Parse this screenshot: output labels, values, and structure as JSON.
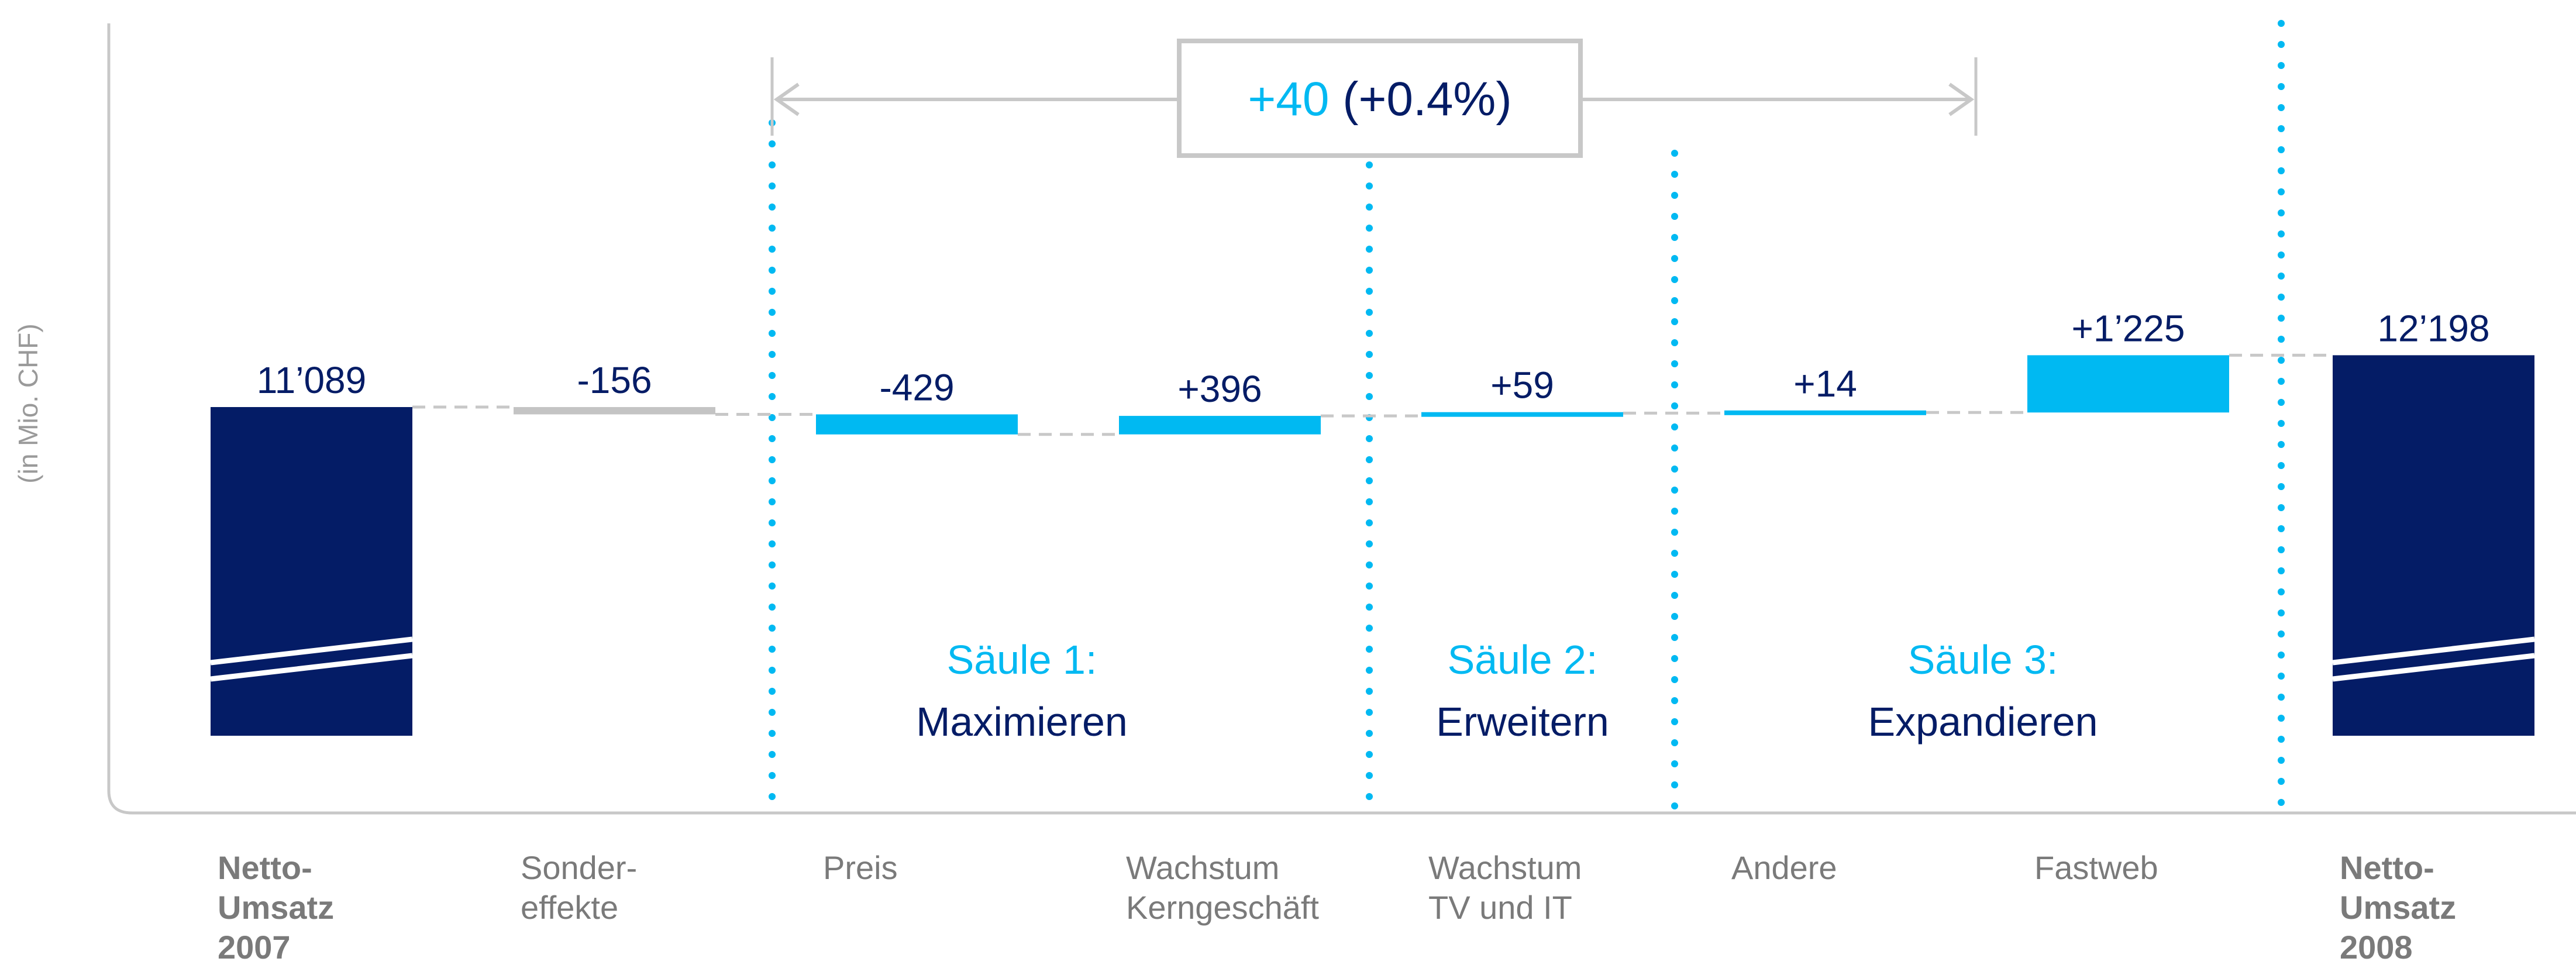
{
  "chart_data": {
    "type": "waterfall",
    "ylabel": "(in Mio. CHF)",
    "categories": [
      {
        "lines": [
          "Netto-",
          "Umsatz",
          "2007"
        ],
        "bold": true
      },
      {
        "lines": [
          "Sonder-",
          "effekte"
        ],
        "bold": false
      },
      {
        "lines": [
          "Preis"
        ],
        "bold": false
      },
      {
        "lines": [
          "Wachstum",
          "Kerngeschäft"
        ],
        "bold": false
      },
      {
        "lines": [
          "Wachstum",
          "TV und IT"
        ],
        "bold": false
      },
      {
        "lines": [
          "Andere"
        ],
        "bold": false
      },
      {
        "lines": [
          "Fastweb"
        ],
        "bold": false
      },
      {
        "lines": [
          "Netto-",
          "Umsatz",
          "2008"
        ],
        "bold": true
      }
    ],
    "values": [
      11089,
      -156,
      -429,
      396,
      59,
      14,
      1225,
      12198
    ],
    "value_labels": [
      "11’089",
      "-156",
      "-429",
      "+396",
      "+59",
      "+14",
      "+1’225",
      "12’198"
    ],
    "kinds": [
      "total",
      "special",
      "delta",
      "delta",
      "delta",
      "delta",
      "delta",
      "total"
    ],
    "change_box": {
      "value": "+40",
      "percent": "(+0.4%)"
    },
    "pillars": [
      {
        "title": "Säule 1:",
        "name": "Maximieren"
      },
      {
        "title": "Säule 2:",
        "name": "Erweitern"
      },
      {
        "title": "Säule 3:",
        "name": "Expandieren"
      }
    ],
    "colors": {
      "total": "#041c66",
      "delta": "#00b9f2",
      "special": "#c4c4c4",
      "text_dark": "#041c66",
      "text_light": "#00b9f2",
      "axis": "#c8c8c8",
      "category_text": "#7a7a7a"
    }
  }
}
